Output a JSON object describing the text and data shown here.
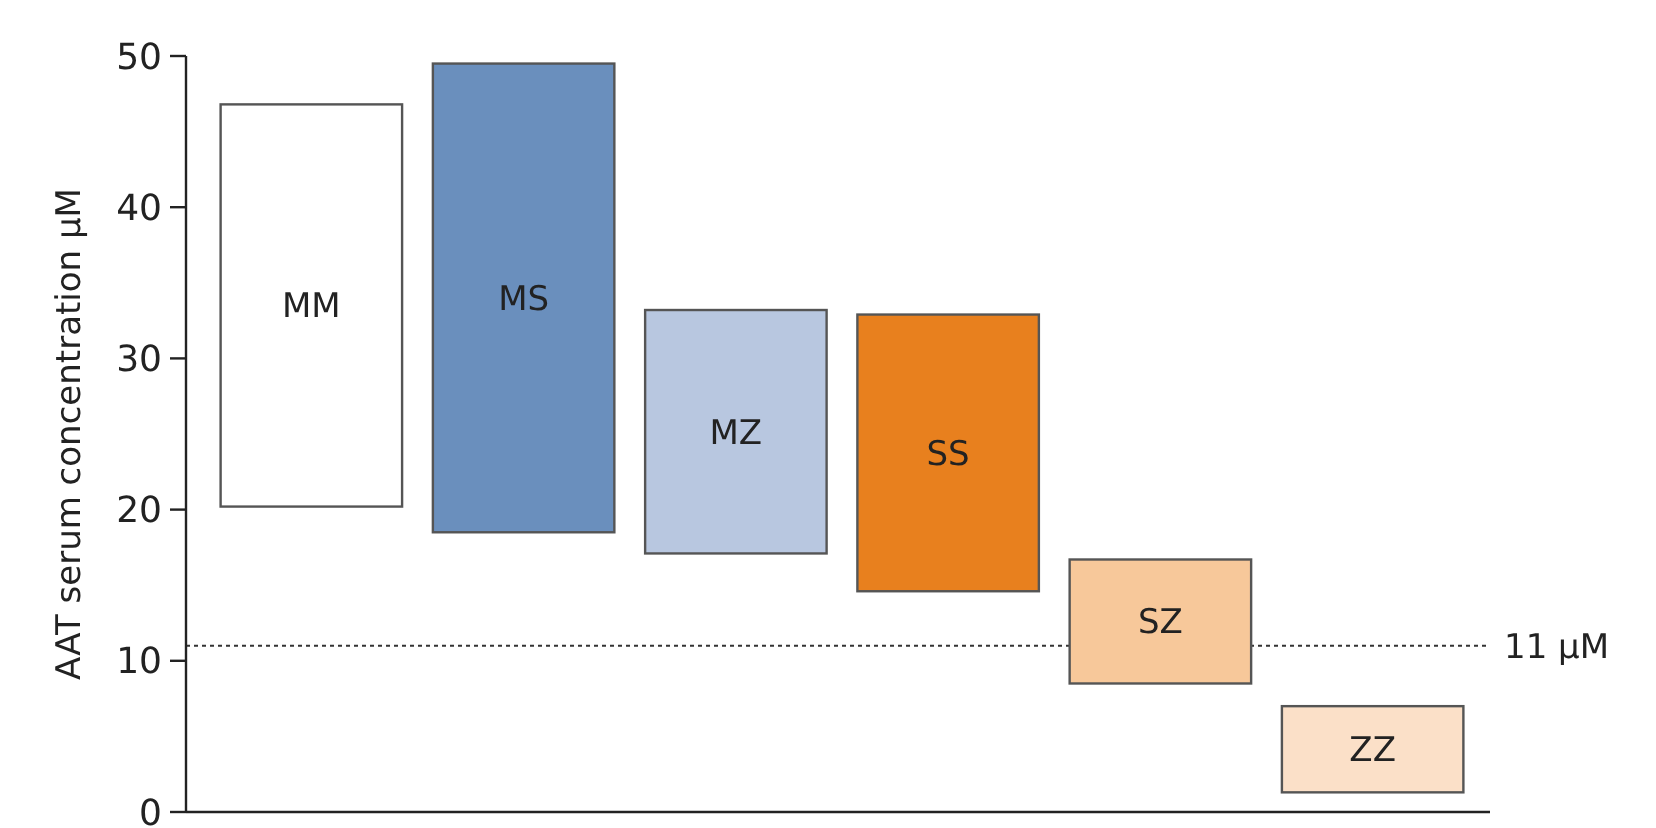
{
  "chart_data": {
    "type": "bar",
    "ylabel": "AAT serum concentration µM",
    "categories": [
      "MM",
      "MS",
      "MZ",
      "SS",
      "SZ",
      "ZZ"
    ],
    "base": [
      20.2,
      18.5,
      17.1,
      14.6,
      8.5,
      1.3
    ],
    "values": [
      26.6,
      31.0,
      16.1,
      18.3,
      8.2,
      5.7
    ],
    "colors": [
      "#ffffff",
      "#6a8fbd",
      "#b8c7e0",
      "#e8801e",
      "#f7c89a",
      "#fbe0c8"
    ],
    "ylim": [
      0,
      50
    ],
    "yticks": [
      0,
      10,
      20,
      30,
      40,
      50
    ],
    "grid": false,
    "tick_labels": "y",
    "ref_lines": [
      {
        "axis": "y",
        "value": 11,
        "label": "11 µM",
        "line_style": "dotted"
      }
    ]
  }
}
